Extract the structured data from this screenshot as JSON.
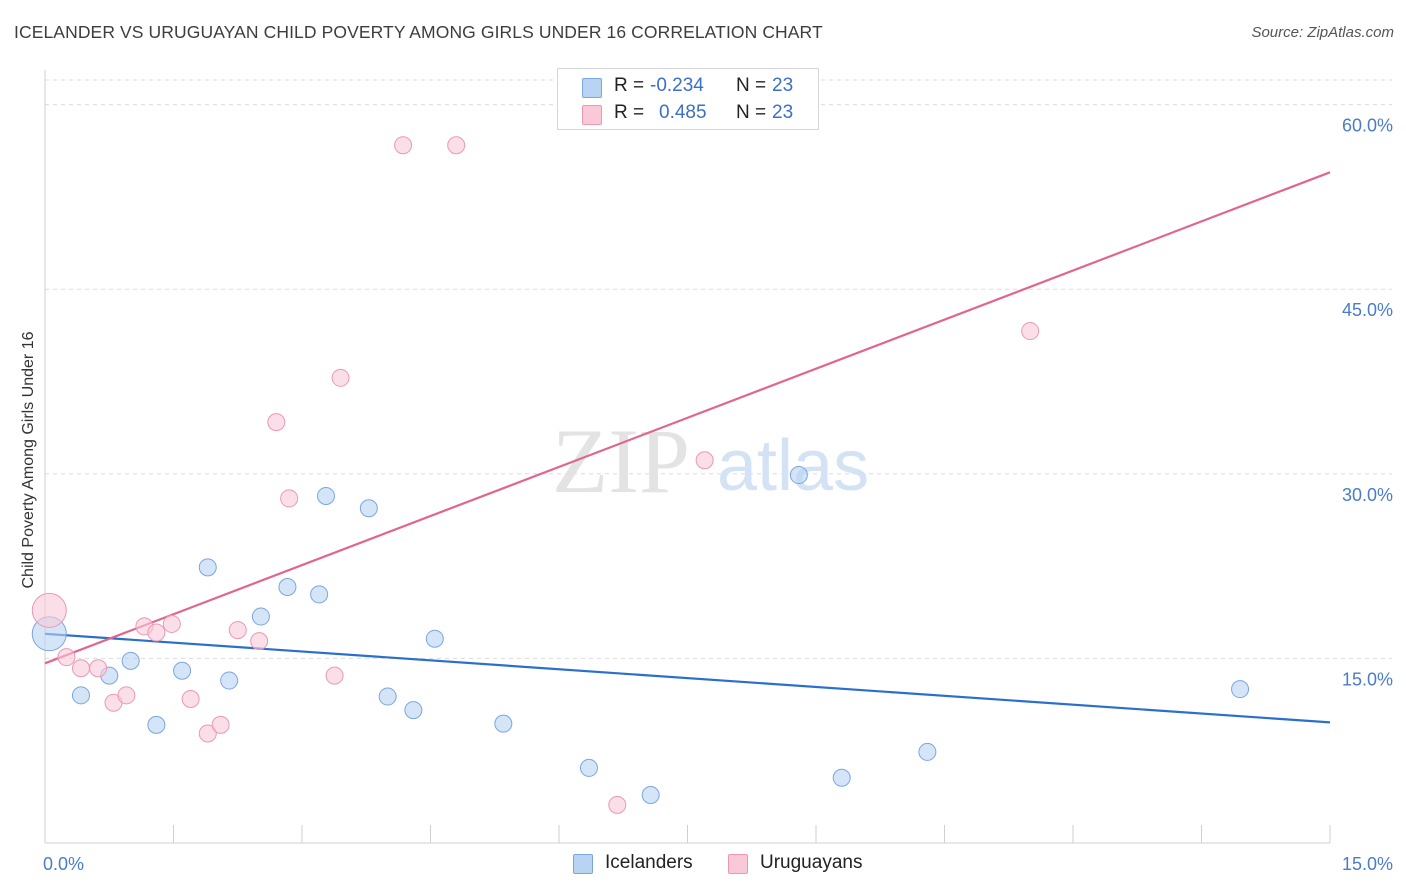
{
  "header": {
    "title": "ICELANDER VS URUGUAYAN CHILD POVERTY AMONG GIRLS UNDER 16 CORRELATION CHART",
    "source": "Source: ZipAtlas.com"
  },
  "watermark": {
    "zip": "ZIP",
    "atlas": "atlas"
  },
  "legend": {
    "r_label": "R = ",
    "n_label": "N = ",
    "rows": [
      {
        "r": "-0.234",
        "n": "23",
        "color": "#b9d3f3",
        "stroke": "#7aa6e0"
      },
      {
        "r": "0.485",
        "n": "23",
        "color": "#f9c9d8",
        "stroke": "#ec98b4"
      }
    ]
  },
  "bottom_legend": [
    "Icelanders",
    "Uruguayans"
  ],
  "chart_data": {
    "type": "scatter",
    "xlabel": "",
    "ylabel": "Child Poverty Among Girls Under 16",
    "xlim": [
      0,
      15
    ],
    "ylim": [
      0,
      62
    ],
    "x_tick_labels": [
      "0.0%",
      "15.0%"
    ],
    "y_ticks": [
      15,
      30,
      45,
      60
    ],
    "y_tick_labels": [
      "15.0%",
      "30.0%",
      "45.0%",
      "60.0%"
    ],
    "grid": true,
    "series": [
      {
        "name": "Icelanders",
        "color": "#b9d3f3",
        "stroke": "#7aa6e0",
        "line_color": "#2a6fcc",
        "trend": {
          "x": [
            0,
            15
          ],
          "y": [
            17.0,
            9.8
          ]
        },
        "points": [
          {
            "x": 0.05,
            "y": 17.0,
            "big": true
          },
          {
            "x": 0.42,
            "y": 12.0
          },
          {
            "x": 0.75,
            "y": 13.6
          },
          {
            "x": 1.0,
            "y": 14.8
          },
          {
            "x": 1.3,
            "y": 9.6
          },
          {
            "x": 1.6,
            "y": 14.0
          },
          {
            "x": 1.9,
            "y": 22.4
          },
          {
            "x": 2.15,
            "y": 13.2
          },
          {
            "x": 2.52,
            "y": 18.4
          },
          {
            "x": 2.83,
            "y": 20.8
          },
          {
            "x": 3.2,
            "y": 20.2
          },
          {
            "x": 3.28,
            "y": 28.2
          },
          {
            "x": 3.78,
            "y": 27.2
          },
          {
            "x": 4.0,
            "y": 11.9
          },
          {
            "x": 4.3,
            "y": 10.8
          },
          {
            "x": 4.55,
            "y": 16.6
          },
          {
            "x": 5.35,
            "y": 9.7
          },
          {
            "x": 6.35,
            "y": 6.1
          },
          {
            "x": 7.07,
            "y": 3.9
          },
          {
            "x": 8.8,
            "y": 29.9
          },
          {
            "x": 9.3,
            "y": 5.3
          },
          {
            "x": 10.3,
            "y": 7.4
          },
          {
            "x": 13.95,
            "y": 12.5
          }
        ]
      },
      {
        "name": "Uruguayans",
        "color": "#f9c9d8",
        "stroke": "#ec98b4",
        "line_color": "#e0668e",
        "trend": {
          "x": [
            0,
            15
          ],
          "y": [
            14.6,
            54.5
          ]
        },
        "points": [
          {
            "x": 0.05,
            "y": 18.9,
            "big": true
          },
          {
            "x": 0.25,
            "y": 15.1
          },
          {
            "x": 0.42,
            "y": 14.2
          },
          {
            "x": 0.62,
            "y": 14.2
          },
          {
            "x": 0.8,
            "y": 11.4
          },
          {
            "x": 0.95,
            "y": 12.0
          },
          {
            "x": 1.16,
            "y": 17.6
          },
          {
            "x": 1.3,
            "y": 17.1
          },
          {
            "x": 1.48,
            "y": 17.8
          },
          {
            "x": 1.7,
            "y": 11.7
          },
          {
            "x": 1.9,
            "y": 8.9
          },
          {
            "x": 2.05,
            "y": 9.6
          },
          {
            "x": 2.25,
            "y": 17.3
          },
          {
            "x": 2.5,
            "y": 16.4
          },
          {
            "x": 2.7,
            "y": 34.2
          },
          {
            "x": 2.85,
            "y": 28.0
          },
          {
            "x": 3.38,
            "y": 13.6
          },
          {
            "x": 3.45,
            "y": 37.8
          },
          {
            "x": 4.18,
            "y": 56.7
          },
          {
            "x": 4.8,
            "y": 56.7
          },
          {
            "x": 6.68,
            "y": 3.1
          },
          {
            "x": 7.7,
            "y": 31.1
          },
          {
            "x": 11.5,
            "y": 41.6
          }
        ]
      }
    ]
  }
}
